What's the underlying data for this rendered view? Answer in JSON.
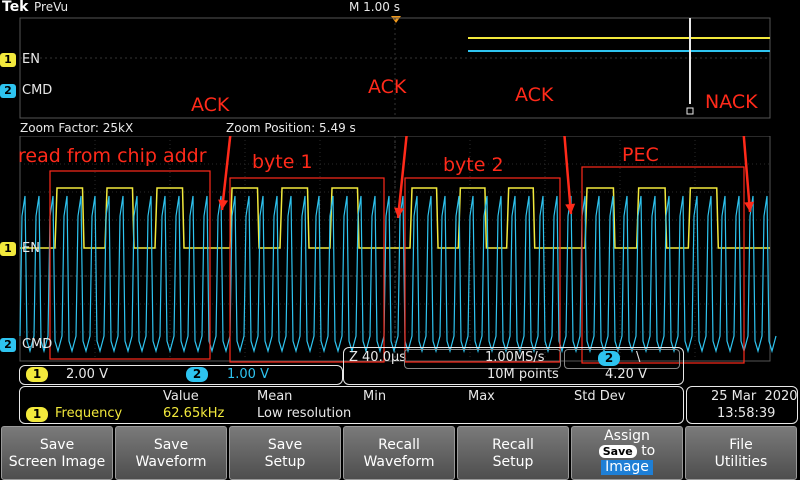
{
  "header": {
    "brand": "Tek",
    "mode": "PreVu",
    "timebase": "M 1.00 s"
  },
  "channels": [
    {
      "number": "1",
      "label": "EN",
      "color": "#f2e93c"
    },
    {
      "number": "2",
      "label": "CMD",
      "color": "#2ec4f0"
    }
  ],
  "zoom": {
    "factor": "Zoom Factor: 25kX",
    "position": "Zoom Position: 5.49 s"
  },
  "annotations": {
    "read_from_chip_addr": "read from chip addr",
    "byte1": "byte 1",
    "byte2": "byte 2",
    "pec": "PEC",
    "ack1": "ACK",
    "ack2": "ACK",
    "ack3": "ACK",
    "nack": "NACK"
  },
  "annotation_color": "#ff2a1a",
  "status": {
    "ch1_scale": "2.00 V",
    "ch2_scale": "1.00 V",
    "z_scale": "Z 40.0µs",
    "sample_rate": "1.00MS/s",
    "record_length": "10M points",
    "trigger_slope": "\\",
    "trigger_level": "4.20 V"
  },
  "measurements": {
    "headers": [
      "Value",
      "Mean",
      "Min",
      "Max",
      "Std Dev"
    ],
    "row": {
      "channel": "1",
      "name": "Frequency",
      "value": "62.65kHz",
      "note": "Low resolution"
    }
  },
  "datetime": {
    "date": "25 Mar  2020",
    "time": "13:58:39"
  },
  "softkeys": [
    {
      "line1": "Save",
      "line2": "Screen Image"
    },
    {
      "line1": "Save",
      "line2": "Waveform"
    },
    {
      "line1": "Save",
      "line2": "Setup"
    },
    {
      "line1": "Recall",
      "line2": "Waveform"
    },
    {
      "line1": "Recall",
      "line2": "Setup"
    },
    {
      "line1": "Assign",
      "badge": "Save",
      "to": "to",
      "target": "Image"
    },
    {
      "line1": "File",
      "line2": "Utilities"
    }
  ]
}
